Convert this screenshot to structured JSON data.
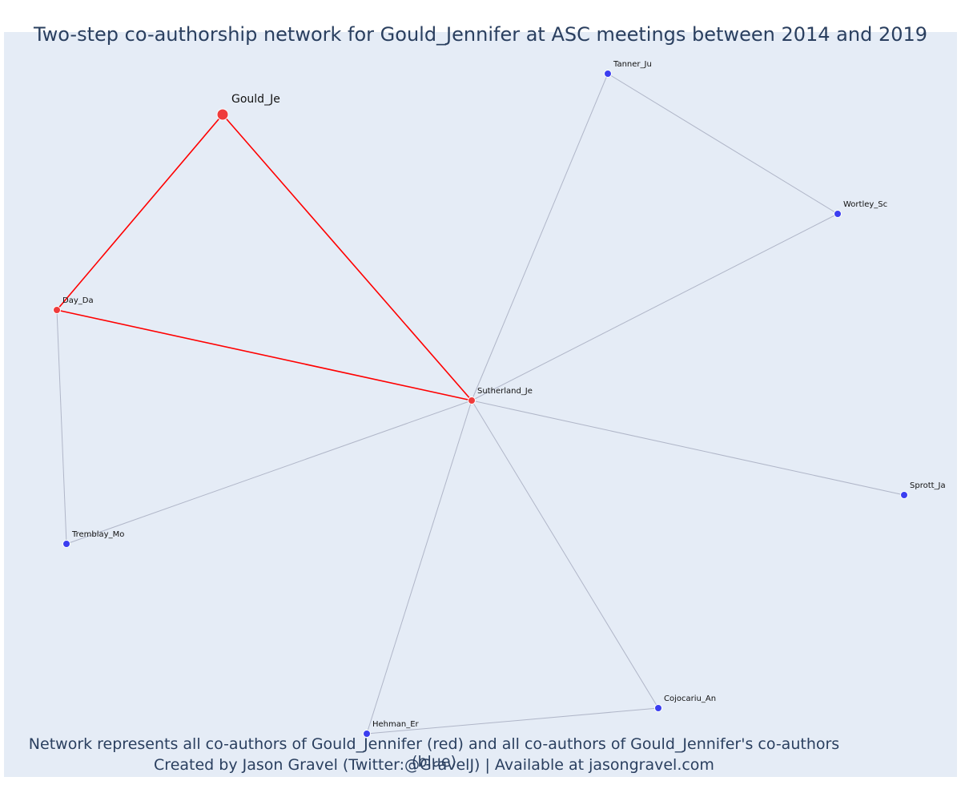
{
  "header": {
    "title": "Two-step co-authorship network for Gould_Jennifer at ASC meetings between 2014 and 2019"
  },
  "footer": {
    "line1": "Network represents all co-authors of Gould_Jennifer (red) and all co-authors of Gould_Jennifer's co-authors (blue)",
    "line2": "Created by Jason Gravel (Twitter:@GravelJ) | Available at jasongravel.com"
  },
  "colors": {
    "plot_bg": "#e5ecf6",
    "direct_node": "#ef3b3b",
    "secondary_node": "#3b3ef0",
    "direct_edge": "#ff0000",
    "secondary_edge": "#b0b6c8"
  },
  "chart_data": {
    "type": "network",
    "nodes": [
      {
        "id": "Gould_Je",
        "group": "focal"
      },
      {
        "id": "Day_Da",
        "group": "direct"
      },
      {
        "id": "Sutherland_Je",
        "group": "direct"
      },
      {
        "id": "Tanner_Ju",
        "group": "secondary"
      },
      {
        "id": "Wortley_Sc",
        "group": "secondary"
      },
      {
        "id": "Sprott_Ja",
        "group": "secondary"
      },
      {
        "id": "Tremblay_Mo",
        "group": "secondary"
      },
      {
        "id": "Cojocariu_An",
        "group": "secondary"
      },
      {
        "id": "Hehman_Er",
        "group": "secondary"
      }
    ],
    "edges": [
      {
        "source": "Gould_Je",
        "target": "Day_Da",
        "type": "direct"
      },
      {
        "source": "Gould_Je",
        "target": "Sutherland_Je",
        "type": "direct"
      },
      {
        "source": "Day_Da",
        "target": "Sutherland_Je",
        "type": "direct"
      },
      {
        "source": "Day_Da",
        "target": "Tremblay_Mo",
        "type": "secondary"
      },
      {
        "source": "Sutherland_Je",
        "target": "Tanner_Ju",
        "type": "secondary"
      },
      {
        "source": "Sutherland_Je",
        "target": "Wortley_Sc",
        "type": "secondary"
      },
      {
        "source": "Sutherland_Je",
        "target": "Sprott_Ja",
        "type": "secondary"
      },
      {
        "source": "Sutherland_Je",
        "target": "Tremblay_Mo",
        "type": "secondary"
      },
      {
        "source": "Sutherland_Je",
        "target": "Cojocariu_An",
        "type": "secondary"
      },
      {
        "source": "Sutherland_Je",
        "target": "Hehman_Er",
        "type": "secondary"
      },
      {
        "source": "Tanner_Ju",
        "target": "Wortley_Sc",
        "type": "secondary"
      },
      {
        "source": "Hehman_Er",
        "target": "Cojocariu_An",
        "type": "secondary"
      }
    ]
  }
}
